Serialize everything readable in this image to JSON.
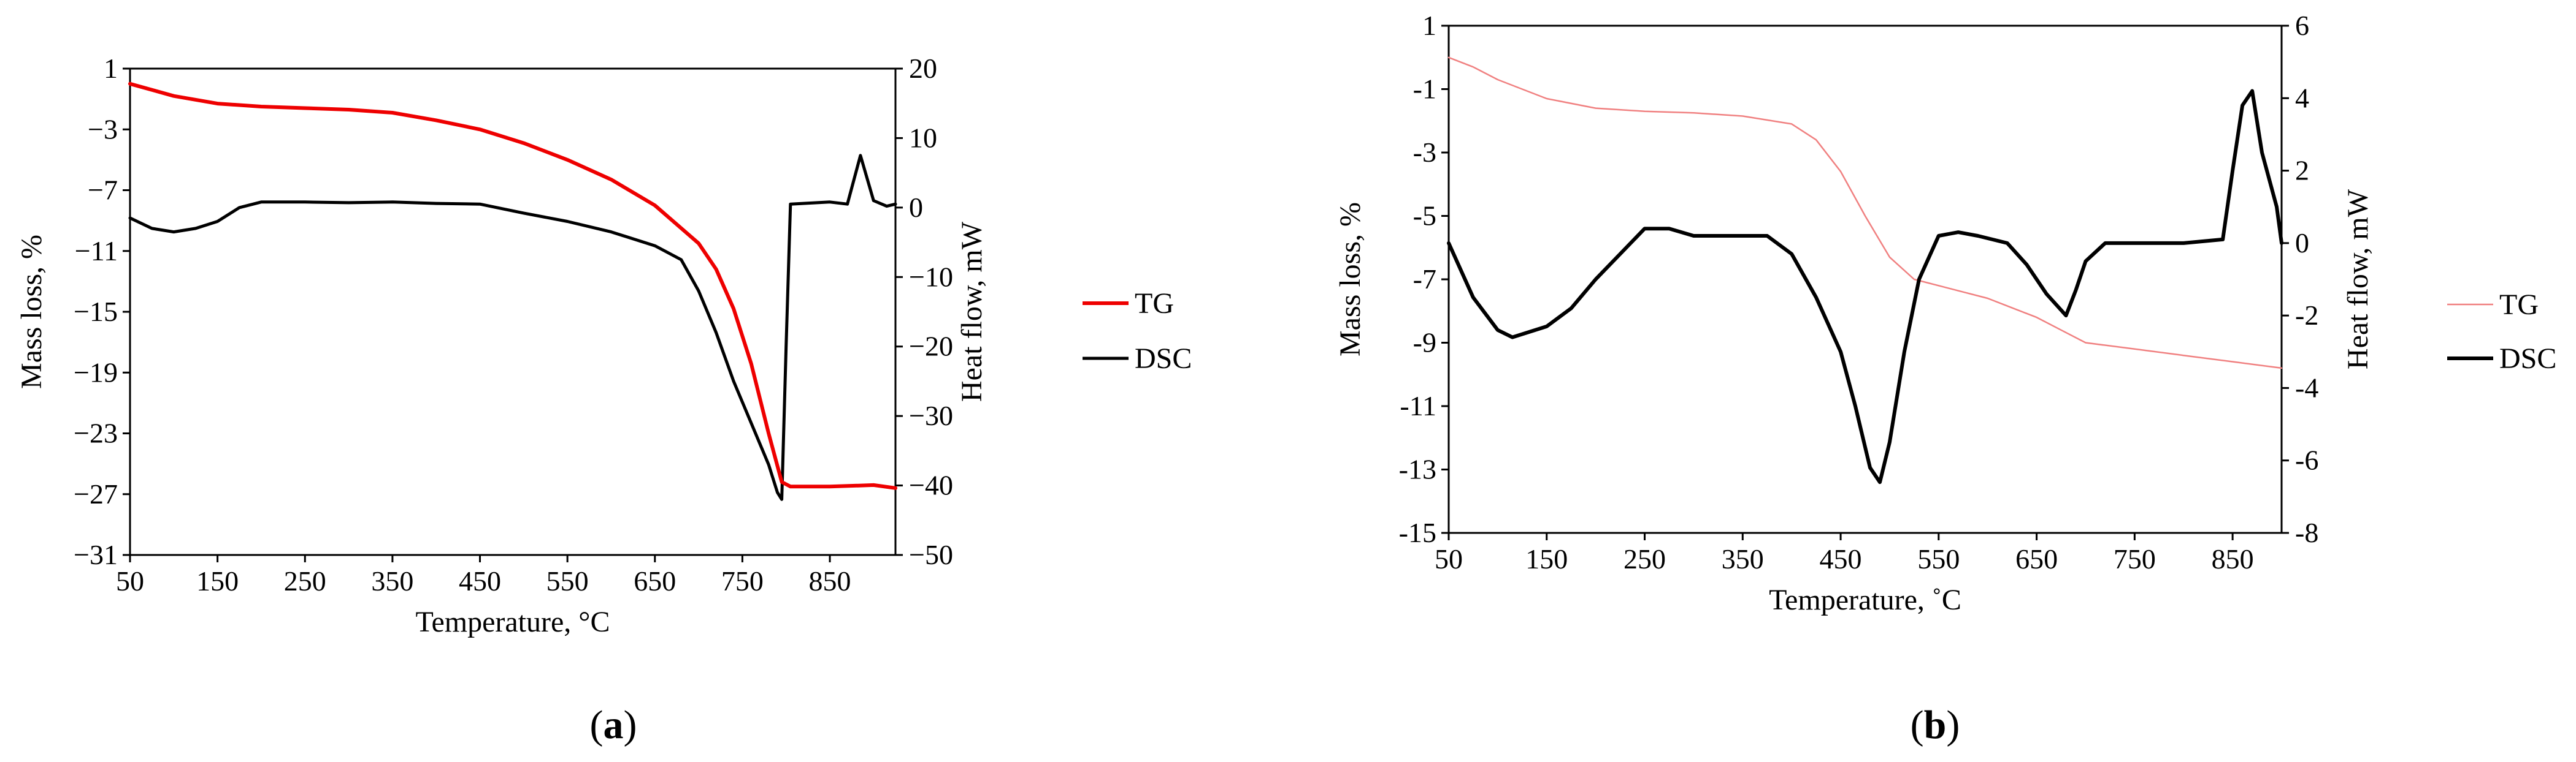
{
  "figure": {
    "panels": [
      {
        "label_open": "(",
        "label_letter": "a",
        "label_close": ")"
      },
      {
        "label_open": "(",
        "label_letter": "b",
        "label_close": ")"
      }
    ]
  },
  "chart_data": [
    {
      "type": "line",
      "xlabel": "Temperature, °C",
      "ylabel": "Mass loss, %",
      "y2label": "Heat flow, mW",
      "xlim": [
        50,
        925
      ],
      "ylim": [
        -31,
        1
      ],
      "y2lim": [
        -50,
        20
      ],
      "xticks": [
        50,
        150,
        250,
        350,
        450,
        550,
        650,
        750,
        850
      ],
      "yticks": [
        1,
        -3,
        -7,
        -11,
        -15,
        -19,
        -23,
        -27,
        -31
      ],
      "y2ticks": [
        20,
        10,
        0,
        -10,
        -20,
        -30,
        -40,
        -50
      ],
      "ytick_labels": [
        "1",
        "−3",
        "−7",
        "−11",
        "−15",
        "−19",
        "−23",
        "−27",
        "−31"
      ],
      "y2tick_labels": [
        "20",
        "10",
        "0",
        "−10",
        "−20",
        "−30",
        "−40",
        "−50"
      ],
      "grid": false,
      "legend": "right",
      "series": [
        {
          "name": "TG",
          "axis": "left",
          "color": "#ee0000",
          "x": [
            50,
            100,
            150,
            200,
            250,
            300,
            350,
            400,
            450,
            500,
            550,
            600,
            650,
            700,
            720,
            740,
            760,
            780,
            795,
            805,
            850,
            900,
            925
          ],
          "y": [
            0,
            -0.8,
            -1.3,
            -1.5,
            -1.6,
            -1.7,
            -1.9,
            -2.4,
            -3.0,
            -3.9,
            -5.0,
            -6.3,
            -8.0,
            -10.5,
            -12.2,
            -14.8,
            -18.4,
            -23.0,
            -26.2,
            -26.5,
            -26.5,
            -26.4,
            -26.6
          ]
        },
        {
          "name": "DSC",
          "axis": "right",
          "color": "#000000",
          "x": [
            50,
            75,
            100,
            125,
            150,
            175,
            200,
            250,
            300,
            350,
            400,
            450,
            500,
            550,
            600,
            650,
            680,
            700,
            720,
            740,
            760,
            780,
            790,
            795,
            800,
            805,
            850,
            870,
            885,
            900,
            915,
            925
          ],
          "y": [
            -1.5,
            -3.0,
            -3.5,
            -3.0,
            -2.0,
            0,
            0.8,
            0.8,
            0.7,
            0.8,
            0.6,
            0.5,
            -0.8,
            -2.0,
            -3.5,
            -5.5,
            -7.5,
            -12,
            -18,
            -25,
            -31,
            -37,
            -41,
            -42,
            -20,
            0.5,
            0.8,
            0.5,
            7.5,
            1.0,
            0.2,
            0.5
          ]
        }
      ]
    },
    {
      "type": "line",
      "xlabel": "Temperature, ˚C",
      "ylabel": "Mass loss, %",
      "y2label": "Heat flow, mW",
      "xlim": [
        50,
        900
      ],
      "ylim": [
        -15,
        1
      ],
      "y2lim": [
        -8,
        6
      ],
      "xticks": [
        50,
        150,
        250,
        350,
        450,
        550,
        650,
        750,
        850
      ],
      "yticks": [
        1,
        -1,
        -3,
        -5,
        -7,
        -9,
        -11,
        -13,
        -15
      ],
      "y2ticks": [
        6,
        4,
        2,
        0,
        -2,
        -4,
        -6,
        -8
      ],
      "ytick_labels": [
        "1",
        "-1",
        "-3",
        "-5",
        "-7",
        "-9",
        "-11",
        "-13",
        "-15"
      ],
      "y2tick_labels": [
        "6",
        "4",
        "2",
        "0",
        "-2",
        "-4",
        "-6",
        "-8"
      ],
      "grid": false,
      "legend": "right",
      "series": [
        {
          "name": "TG",
          "axis": "left",
          "color": "#f08080",
          "x": [
            50,
            75,
            100,
            125,
            150,
            200,
            250,
            300,
            350,
            400,
            425,
            450,
            475,
            500,
            525,
            550,
            575,
            600,
            625,
            650,
            675,
            700,
            750,
            800,
            850,
            900
          ],
          "y": [
            0,
            -0.3,
            -0.7,
            -1.0,
            -1.3,
            -1.6,
            -1.7,
            -1.75,
            -1.85,
            -2.1,
            -2.6,
            -3.6,
            -5.0,
            -6.3,
            -7.0,
            -7.2,
            -7.4,
            -7.6,
            -7.9,
            -8.2,
            -8.6,
            -9.0,
            -9.2,
            -9.4,
            -9.6,
            -9.8
          ]
        },
        {
          "name": "DSC",
          "axis": "right",
          "color": "#000000",
          "x": [
            50,
            75,
            100,
            115,
            150,
            175,
            200,
            225,
            250,
            275,
            300,
            350,
            375,
            400,
            425,
            450,
            465,
            480,
            490,
            500,
            515,
            530,
            550,
            570,
            590,
            620,
            640,
            660,
            680,
            690,
            700,
            720,
            750,
            800,
            820,
            840,
            850,
            860,
            870,
            880,
            895,
            900
          ],
          "y": [
            0,
            -1.5,
            -2.4,
            -2.6,
            -2.3,
            -1.8,
            -1.0,
            -0.3,
            0.4,
            0.4,
            0.2,
            0.2,
            0.2,
            -0.3,
            -1.5,
            -3.0,
            -4.5,
            -6.2,
            -6.6,
            -5.5,
            -3.0,
            -1.0,
            0.2,
            0.3,
            0.2,
            0.0,
            -0.6,
            -1.4,
            -2.0,
            -1.3,
            -0.5,
            0,
            0,
            0,
            0.05,
            0.1,
            2.0,
            3.8,
            4.2,
            2.5,
            1.0,
            0
          ]
        }
      ]
    }
  ]
}
